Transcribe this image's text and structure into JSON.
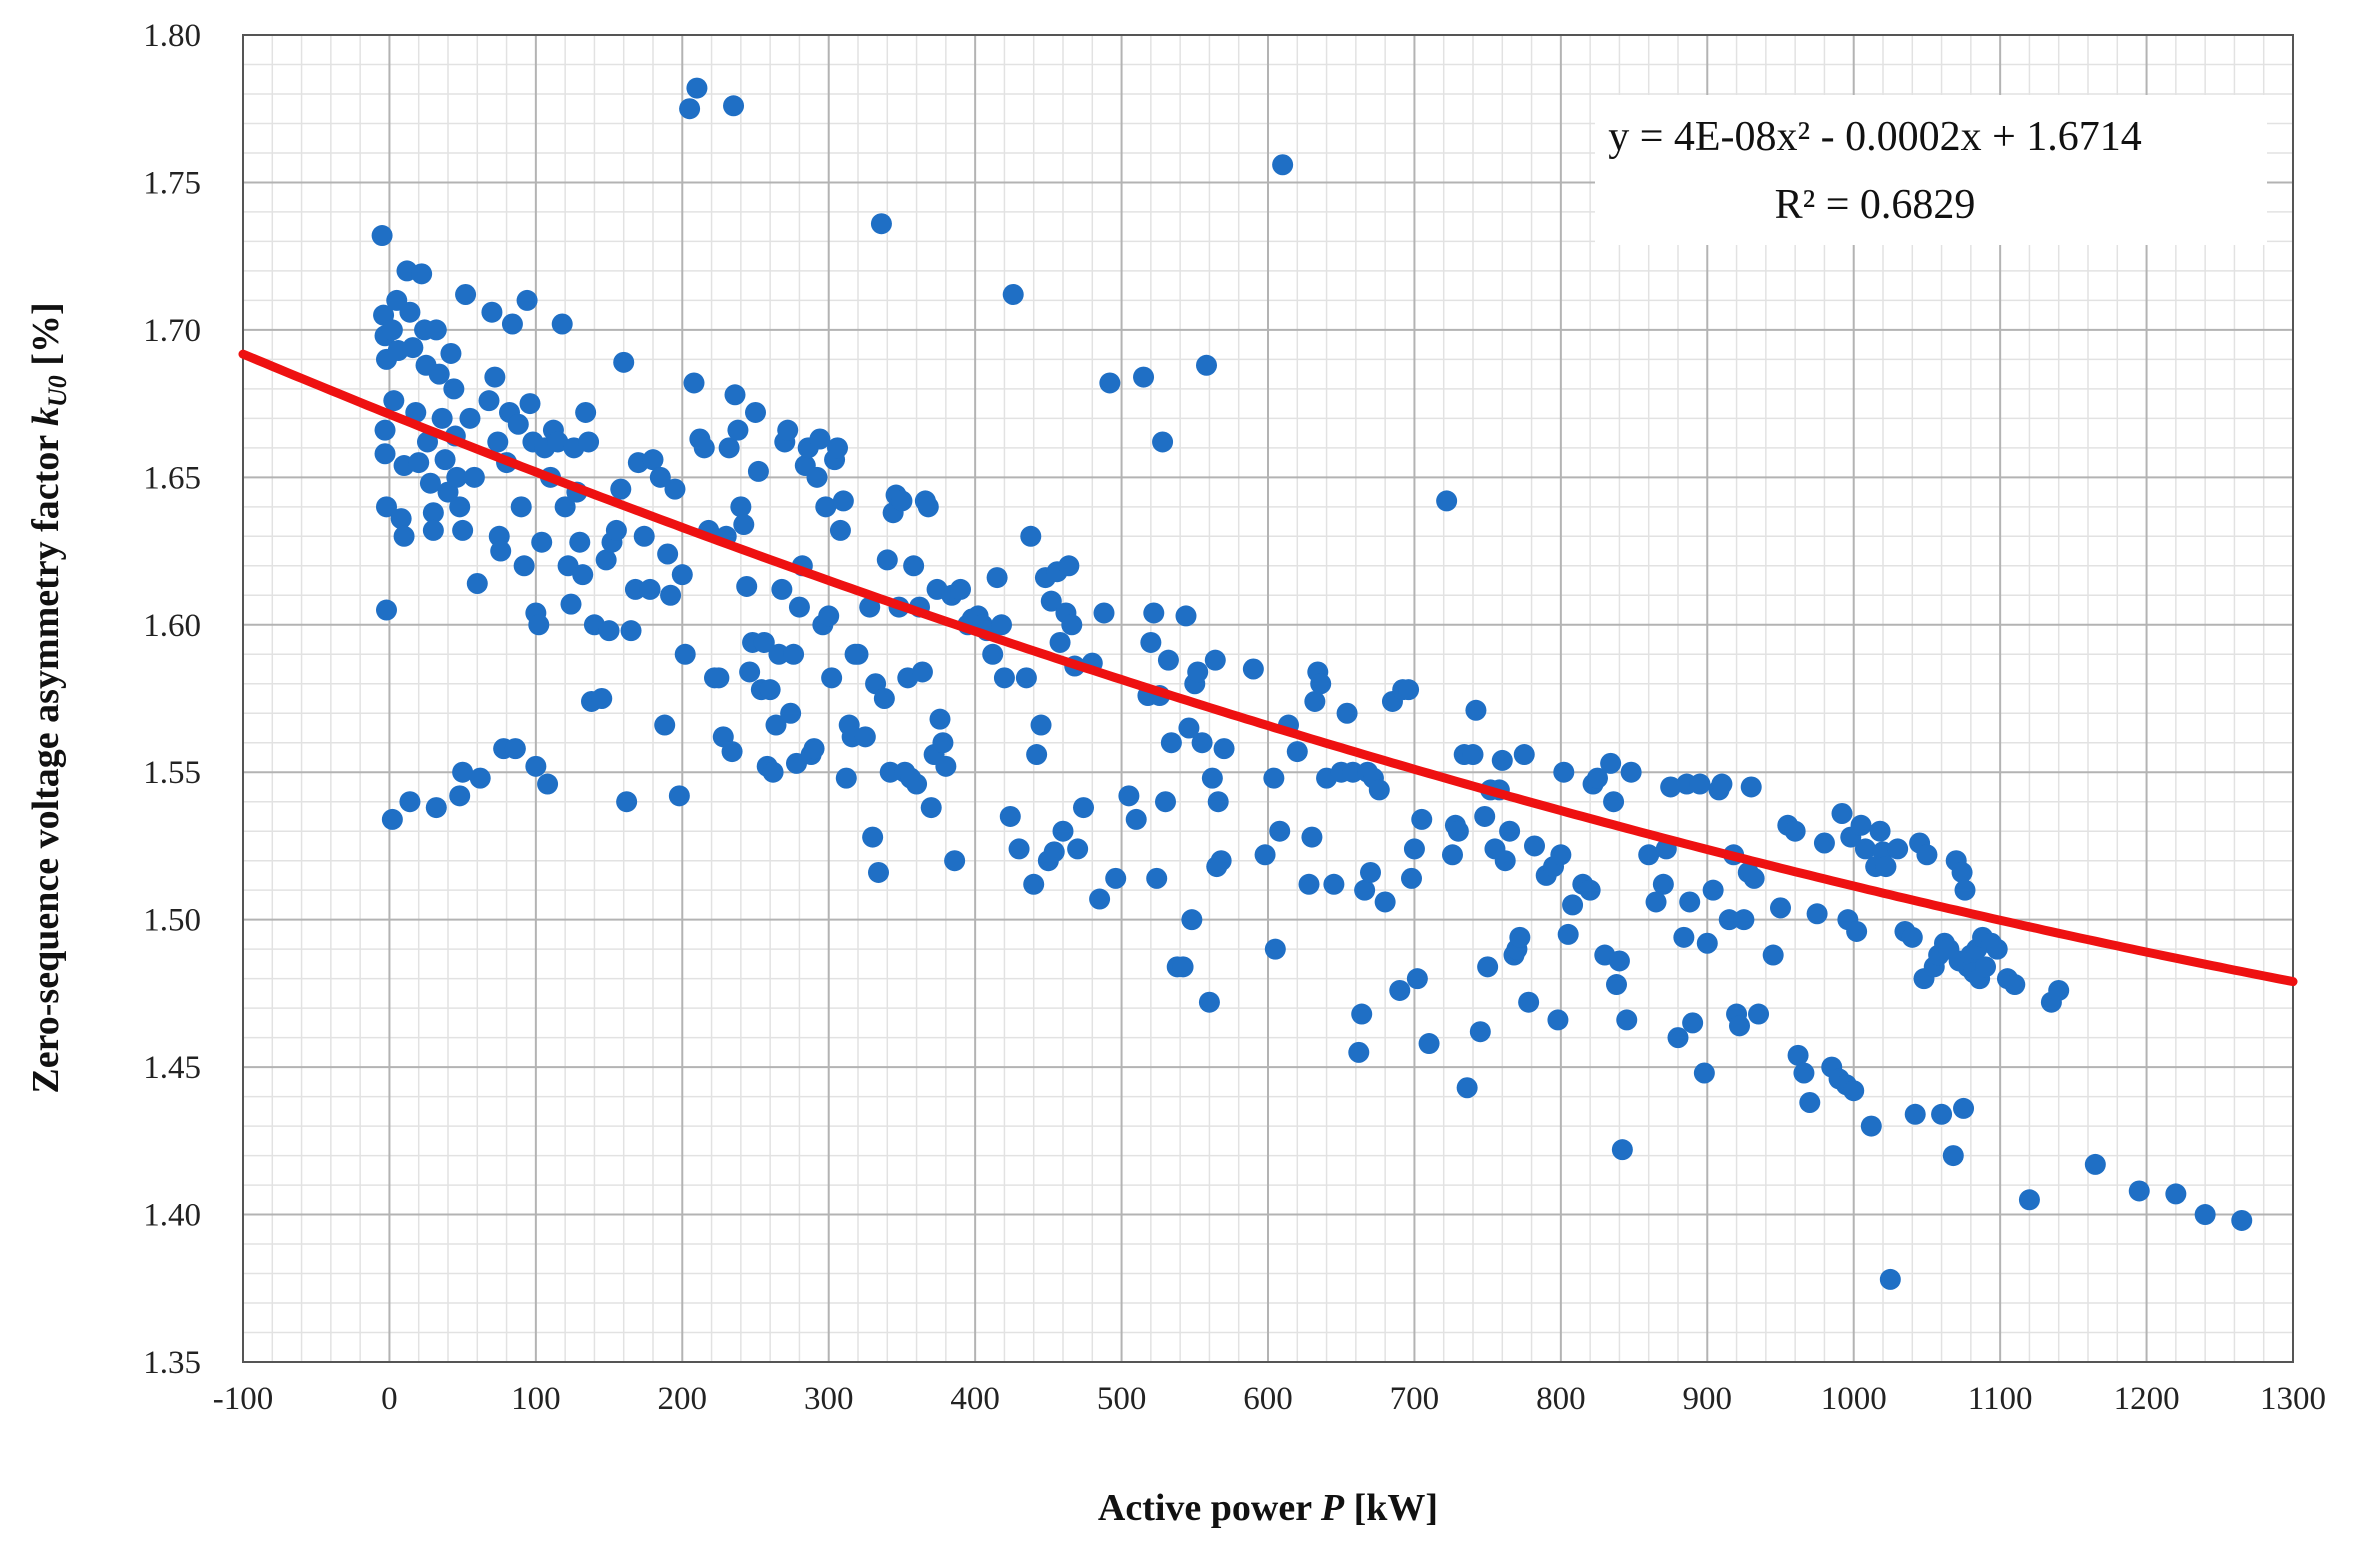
{
  "chart_data": {
    "type": "scatter",
    "title": "",
    "xlabel_prefix": "Active power ",
    "xlabel_var": "P",
    "xlabel_suffix": " [kW]",
    "ylabel_prefix": "Zero-sequence voltage asymmetry factor ",
    "ylabel_var": "k",
    "ylabel_sub": "U0",
    "ylabel_suffix": " [%]",
    "xlim": [
      -100,
      1300
    ],
    "ylim": [
      1.35,
      1.8
    ],
    "xticks": [
      "-100",
      "0",
      "100",
      "200",
      "300",
      "400",
      "500",
      "600",
      "700",
      "800",
      "900",
      "1000",
      "1100",
      "1200",
      "1300"
    ],
    "yticks": [
      "1.35",
      "1.40",
      "1.45",
      "1.50",
      "1.55",
      "1.60",
      "1.65",
      "1.70",
      "1.75",
      "1.80"
    ],
    "grid": true,
    "series_color": "#1f6fc5",
    "trendline": {
      "type": "polynomial",
      "order": 2,
      "coefficients": {
        "a": 4e-08,
        "b": -0.0002,
        "c": 1.6714
      },
      "color": "#ee1111",
      "equation_text": "y = 4E-08x² - 0.0002x + 1.6714",
      "r2_text": "R² = 0.6829",
      "equation_position": "top-right"
    },
    "points": [
      [
        -5,
        1.732
      ],
      [
        -4,
        1.705
      ],
      [
        -3,
        1.698
      ],
      [
        -2,
        1.69
      ],
      [
        -3,
        1.666
      ],
      [
        -3,
        1.658
      ],
      [
        -2,
        1.64
      ],
      [
        -2,
        1.605
      ],
      [
        2,
        1.534
      ],
      [
        2,
        1.7
      ],
      [
        3,
        1.676
      ],
      [
        5,
        1.71
      ],
      [
        6,
        1.693
      ],
      [
        8,
        1.636
      ],
      [
        10,
        1.654
      ],
      [
        10,
        1.63
      ],
      [
        12,
        1.72
      ],
      [
        14,
        1.706
      ],
      [
        16,
        1.694
      ],
      [
        18,
        1.672
      ],
      [
        20,
        1.655
      ],
      [
        22,
        1.719
      ],
      [
        24,
        1.7
      ],
      [
        25,
        1.688
      ],
      [
        26,
        1.662
      ],
      [
        28,
        1.648
      ],
      [
        30,
        1.638
      ],
      [
        30,
        1.632
      ],
      [
        32,
        1.7
      ],
      [
        34,
        1.685
      ],
      [
        36,
        1.67
      ],
      [
        38,
        1.656
      ],
      [
        40,
        1.645
      ],
      [
        42,
        1.692
      ],
      [
        44,
        1.68
      ],
      [
        45,
        1.664
      ],
      [
        46,
        1.65
      ],
      [
        48,
        1.64
      ],
      [
        50,
        1.632
      ],
      [
        14,
        1.54
      ],
      [
        32,
        1.538
      ],
      [
        48,
        1.542
      ],
      [
        50,
        1.55
      ],
      [
        52,
        1.712
      ],
      [
        55,
        1.67
      ],
      [
        58,
        1.65
      ],
      [
        60,
        1.614
      ],
      [
        62,
        1.548
      ],
      [
        68,
        1.676
      ],
      [
        70,
        1.706
      ],
      [
        72,
        1.684
      ],
      [
        74,
        1.662
      ],
      [
        75,
        1.63
      ],
      [
        76,
        1.625
      ],
      [
        78,
        1.558
      ],
      [
        80,
        1.655
      ],
      [
        82,
        1.672
      ],
      [
        84,
        1.702
      ],
      [
        86,
        1.558
      ],
      [
        88,
        1.668
      ],
      [
        90,
        1.64
      ],
      [
        92,
        1.62
      ],
      [
        94,
        1.71
      ],
      [
        96,
        1.675
      ],
      [
        98,
        1.662
      ],
      [
        100,
        1.604
      ],
      [
        100,
        1.552
      ],
      [
        102,
        1.6
      ],
      [
        104,
        1.628
      ],
      [
        106,
        1.66
      ],
      [
        108,
        1.546
      ],
      [
        110,
        1.65
      ],
      [
        112,
        1.666
      ],
      [
        115,
        1.662
      ],
      [
        118,
        1.702
      ],
      [
        120,
        1.64
      ],
      [
        122,
        1.62
      ],
      [
        124,
        1.607
      ],
      [
        126,
        1.66
      ],
      [
        128,
        1.645
      ],
      [
        130,
        1.628
      ],
      [
        132,
        1.617
      ],
      [
        134,
        1.672
      ],
      [
        136,
        1.662
      ],
      [
        138,
        1.574
      ],
      [
        140,
        1.6
      ],
      [
        145,
        1.575
      ],
      [
        148,
        1.622
      ],
      [
        150,
        1.598
      ],
      [
        152,
        1.628
      ],
      [
        155,
        1.632
      ],
      [
        158,
        1.646
      ],
      [
        160,
        1.689
      ],
      [
        162,
        1.54
      ],
      [
        165,
        1.598
      ],
      [
        168,
        1.612
      ],
      [
        170,
        1.655
      ],
      [
        174,
        1.63
      ],
      [
        178,
        1.612
      ],
      [
        180,
        1.656
      ],
      [
        185,
        1.65
      ],
      [
        188,
        1.566
      ],
      [
        190,
        1.624
      ],
      [
        192,
        1.61
      ],
      [
        195,
        1.646
      ],
      [
        198,
        1.542
      ],
      [
        200,
        1.617
      ],
      [
        202,
        1.59
      ],
      [
        205,
        1.775
      ],
      [
        208,
        1.682
      ],
      [
        210,
        1.782
      ],
      [
        212,
        1.663
      ],
      [
        215,
        1.66
      ],
      [
        218,
        1.632
      ],
      [
        222,
        1.582
      ],
      [
        225,
        1.582
      ],
      [
        228,
        1.562
      ],
      [
        230,
        1.63
      ],
      [
        232,
        1.66
      ],
      [
        234,
        1.557
      ],
      [
        235,
        1.776
      ],
      [
        236,
        1.678
      ],
      [
        238,
        1.666
      ],
      [
        240,
        1.64
      ],
      [
        242,
        1.634
      ],
      [
        244,
        1.613
      ],
      [
        246,
        1.584
      ],
      [
        248,
        1.594
      ],
      [
        250,
        1.672
      ],
      [
        252,
        1.652
      ],
      [
        254,
        1.578
      ],
      [
        256,
        1.594
      ],
      [
        258,
        1.552
      ],
      [
        260,
        1.578
      ],
      [
        262,
        1.55
      ],
      [
        264,
        1.566
      ],
      [
        266,
        1.59
      ],
      [
        268,
        1.612
      ],
      [
        270,
        1.662
      ],
      [
        272,
        1.666
      ],
      [
        274,
        1.57
      ],
      [
        276,
        1.59
      ],
      [
        278,
        1.553
      ],
      [
        280,
        1.606
      ],
      [
        282,
        1.62
      ],
      [
        284,
        1.654
      ],
      [
        286,
        1.66
      ],
      [
        288,
        1.556
      ],
      [
        290,
        1.558
      ],
      [
        292,
        1.65
      ],
      [
        294,
        1.663
      ],
      [
        296,
        1.6
      ],
      [
        298,
        1.64
      ],
      [
        300,
        1.603
      ],
      [
        302,
        1.582
      ],
      [
        304,
        1.656
      ],
      [
        306,
        1.66
      ],
      [
        308,
        1.632
      ],
      [
        310,
        1.642
      ],
      [
        312,
        1.548
      ],
      [
        314,
        1.566
      ],
      [
        316,
        1.562
      ],
      [
        318,
        1.59
      ],
      [
        320,
        1.59
      ],
      [
        325,
        1.562
      ],
      [
        328,
        1.606
      ],
      [
        330,
        1.528
      ],
      [
        332,
        1.58
      ],
      [
        334,
        1.516
      ],
      [
        336,
        1.736
      ],
      [
        338,
        1.575
      ],
      [
        340,
        1.622
      ],
      [
        342,
        1.55
      ],
      [
        344,
        1.638
      ],
      [
        346,
        1.644
      ],
      [
        348,
        1.606
      ],
      [
        350,
        1.642
      ],
      [
        352,
        1.55
      ],
      [
        354,
        1.582
      ],
      [
        356,
        1.548
      ],
      [
        358,
        1.62
      ],
      [
        360,
        1.546
      ],
      [
        362,
        1.606
      ],
      [
        364,
        1.584
      ],
      [
        366,
        1.642
      ],
      [
        368,
        1.64
      ],
      [
        370,
        1.538
      ],
      [
        372,
        1.556
      ],
      [
        374,
        1.612
      ],
      [
        376,
        1.568
      ],
      [
        378,
        1.56
      ],
      [
        380,
        1.552
      ],
      [
        384,
        1.61
      ],
      [
        386,
        1.52
      ],
      [
        390,
        1.612
      ],
      [
        395,
        1.6
      ],
      [
        398,
        1.602
      ],
      [
        402,
        1.603
      ],
      [
        405,
        1.6
      ],
      [
        408,
        1.598
      ],
      [
        412,
        1.59
      ],
      [
        415,
        1.616
      ],
      [
        418,
        1.6
      ],
      [
        420,
        1.582
      ],
      [
        424,
        1.535
      ],
      [
        426,
        1.712
      ],
      [
        430,
        1.524
      ],
      [
        435,
        1.582
      ],
      [
        438,
        1.63
      ],
      [
        440,
        1.512
      ],
      [
        442,
        1.556
      ],
      [
        445,
        1.566
      ],
      [
        448,
        1.616
      ],
      [
        450,
        1.52
      ],
      [
        452,
        1.608
      ],
      [
        454,
        1.523
      ],
      [
        456,
        1.618
      ],
      [
        458,
        1.594
      ],
      [
        460,
        1.53
      ],
      [
        462,
        1.604
      ],
      [
        464,
        1.62
      ],
      [
        466,
        1.6
      ],
      [
        468,
        1.586
      ],
      [
        470,
        1.524
      ],
      [
        474,
        1.538
      ],
      [
        480,
        1.587
      ],
      [
        485,
        1.507
      ],
      [
        488,
        1.604
      ],
      [
        492,
        1.682
      ],
      [
        496,
        1.514
      ],
      [
        505,
        1.542
      ],
      [
        510,
        1.534
      ],
      [
        515,
        1.684
      ],
      [
        518,
        1.576
      ],
      [
        520,
        1.594
      ],
      [
        522,
        1.604
      ],
      [
        524,
        1.514
      ],
      [
        526,
        1.576
      ],
      [
        528,
        1.662
      ],
      [
        530,
        1.54
      ],
      [
        532,
        1.588
      ],
      [
        534,
        1.56
      ],
      [
        538,
        1.484
      ],
      [
        542,
        1.484
      ],
      [
        544,
        1.603
      ],
      [
        546,
        1.565
      ],
      [
        548,
        1.5
      ],
      [
        550,
        1.58
      ],
      [
        552,
        1.584
      ],
      [
        555,
        1.56
      ],
      [
        558,
        1.688
      ],
      [
        560,
        1.472
      ],
      [
        562,
        1.548
      ],
      [
        564,
        1.588
      ],
      [
        565,
        1.518
      ],
      [
        566,
        1.54
      ],
      [
        568,
        1.52
      ],
      [
        570,
        1.558
      ],
      [
        590,
        1.585
      ],
      [
        598,
        1.522
      ],
      [
        604,
        1.548
      ],
      [
        605,
        1.49
      ],
      [
        608,
        1.53
      ],
      [
        610,
        1.756
      ],
      [
        614,
        1.566
      ],
      [
        620,
        1.557
      ],
      [
        628,
        1.512
      ],
      [
        630,
        1.528
      ],
      [
        632,
        1.574
      ],
      [
        634,
        1.584
      ],
      [
        636,
        1.58
      ],
      [
        640,
        1.548
      ],
      [
        645,
        1.512
      ],
      [
        650,
        1.55
      ],
      [
        654,
        1.57
      ],
      [
        658,
        1.55
      ],
      [
        662,
        1.455
      ],
      [
        664,
        1.468
      ],
      [
        666,
        1.51
      ],
      [
        668,
        1.55
      ],
      [
        670,
        1.516
      ],
      [
        672,
        1.548
      ],
      [
        676,
        1.544
      ],
      [
        680,
        1.506
      ],
      [
        685,
        1.574
      ],
      [
        690,
        1.476
      ],
      [
        692,
        1.578
      ],
      [
        696,
        1.578
      ],
      [
        698,
        1.514
      ],
      [
        700,
        1.524
      ],
      [
        702,
        1.48
      ],
      [
        705,
        1.534
      ],
      [
        710,
        1.458
      ],
      [
        722,
        1.642
      ],
      [
        726,
        1.522
      ],
      [
        728,
        1.532
      ],
      [
        730,
        1.53
      ],
      [
        734,
        1.556
      ],
      [
        736,
        1.443
      ],
      [
        740,
        1.556
      ],
      [
        742,
        1.571
      ],
      [
        745,
        1.462
      ],
      [
        748,
        1.535
      ],
      [
        750,
        1.484
      ],
      [
        752,
        1.544
      ],
      [
        755,
        1.524
      ],
      [
        758,
        1.544
      ],
      [
        760,
        1.554
      ],
      [
        762,
        1.52
      ],
      [
        765,
        1.53
      ],
      [
        768,
        1.488
      ],
      [
        770,
        1.49
      ],
      [
        772,
        1.494
      ],
      [
        775,
        1.556
      ],
      [
        778,
        1.472
      ],
      [
        782,
        1.525
      ],
      [
        790,
        1.515
      ],
      [
        795,
        1.518
      ],
      [
        798,
        1.466
      ],
      [
        800,
        1.522
      ],
      [
        802,
        1.55
      ],
      [
        805,
        1.495
      ],
      [
        808,
        1.505
      ],
      [
        815,
        1.512
      ],
      [
        820,
        1.51
      ],
      [
        822,
        1.546
      ],
      [
        825,
        1.548
      ],
      [
        830,
        1.488
      ],
      [
        834,
        1.553
      ],
      [
        836,
        1.54
      ],
      [
        838,
        1.478
      ],
      [
        840,
        1.486
      ],
      [
        842,
        1.422
      ],
      [
        845,
        1.466
      ],
      [
        848,
        1.55
      ],
      [
        860,
        1.522
      ],
      [
        865,
        1.506
      ],
      [
        870,
        1.512
      ],
      [
        872,
        1.524
      ],
      [
        875,
        1.545
      ],
      [
        880,
        1.46
      ],
      [
        884,
        1.494
      ],
      [
        886,
        1.546
      ],
      [
        888,
        1.506
      ],
      [
        890,
        1.465
      ],
      [
        895,
        1.546
      ],
      [
        898,
        1.448
      ],
      [
        900,
        1.492
      ],
      [
        904,
        1.51
      ],
      [
        908,
        1.544
      ],
      [
        910,
        1.546
      ],
      [
        915,
        1.5
      ],
      [
        918,
        1.522
      ],
      [
        920,
        1.468
      ],
      [
        922,
        1.464
      ],
      [
        925,
        1.5
      ],
      [
        928,
        1.516
      ],
      [
        930,
        1.545
      ],
      [
        932,
        1.514
      ],
      [
        935,
        1.468
      ],
      [
        945,
        1.488
      ],
      [
        950,
        1.504
      ],
      [
        955,
        1.532
      ],
      [
        960,
        1.53
      ],
      [
        962,
        1.454
      ],
      [
        966,
        1.448
      ],
      [
        970,
        1.438
      ],
      [
        975,
        1.502
      ],
      [
        980,
        1.526
      ],
      [
        985,
        1.45
      ],
      [
        990,
        1.446
      ],
      [
        992,
        1.536
      ],
      [
        995,
        1.444
      ],
      [
        996,
        1.5
      ],
      [
        998,
        1.528
      ],
      [
        1000,
        1.442
      ],
      [
        1002,
        1.496
      ],
      [
        1005,
        1.532
      ],
      [
        1008,
        1.524
      ],
      [
        1012,
        1.43
      ],
      [
        1015,
        1.518
      ],
      [
        1018,
        1.53
      ],
      [
        1020,
        1.523
      ],
      [
        1022,
        1.518
      ],
      [
        1025,
        1.378
      ],
      [
        1030,
        1.524
      ],
      [
        1035,
        1.496
      ],
      [
        1040,
        1.494
      ],
      [
        1042,
        1.434
      ],
      [
        1045,
        1.526
      ],
      [
        1048,
        1.48
      ],
      [
        1050,
        1.522
      ],
      [
        1055,
        1.484
      ],
      [
        1058,
        1.488
      ],
      [
        1060,
        1.434
      ],
      [
        1062,
        1.492
      ],
      [
        1065,
        1.49
      ],
      [
        1068,
        1.42
      ],
      [
        1070,
        1.52
      ],
      [
        1072,
        1.486
      ],
      [
        1074,
        1.516
      ],
      [
        1075,
        1.436
      ],
      [
        1076,
        1.51
      ],
      [
        1078,
        1.484
      ],
      [
        1080,
        1.488
      ],
      [
        1082,
        1.482
      ],
      [
        1084,
        1.49
      ],
      [
        1086,
        1.48
      ],
      [
        1088,
        1.494
      ],
      [
        1090,
        1.484
      ],
      [
        1094,
        1.492
      ],
      [
        1098,
        1.49
      ],
      [
        1105,
        1.48
      ],
      [
        1110,
        1.478
      ],
      [
        1120,
        1.405
      ],
      [
        1135,
        1.472
      ],
      [
        1140,
        1.476
      ],
      [
        1165,
        1.417
      ],
      [
        1195,
        1.408
      ],
      [
        1220,
        1.407
      ],
      [
        1240,
        1.4
      ],
      [
        1265,
        1.398
      ]
    ]
  }
}
